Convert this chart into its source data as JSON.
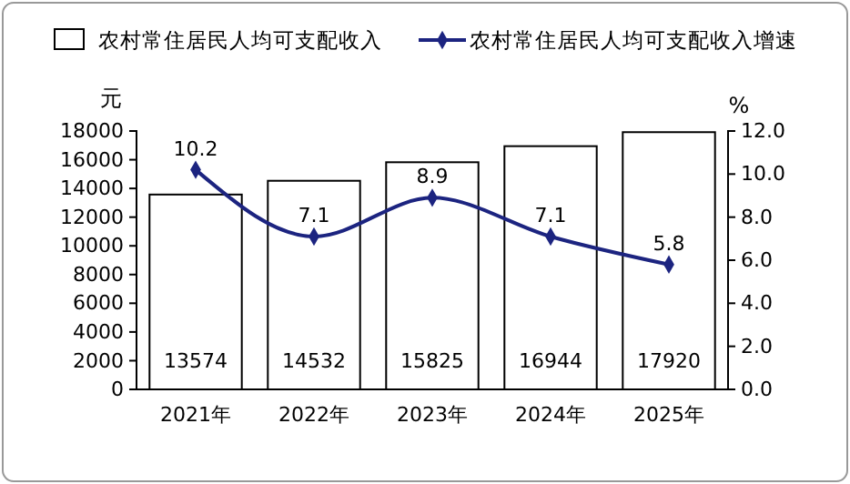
{
  "chart_data": {
    "type": "bar",
    "categories": [
      "2021年",
      "2022年",
      "2023年",
      "2024年",
      "2025年"
    ],
    "ylabel": "元",
    "y2label": "%",
    "ylim": [
      0,
      18000
    ],
    "yticks": [
      0,
      2000,
      4000,
      6000,
      8000,
      10000,
      12000,
      14000,
      16000,
      18000
    ],
    "y2lim": [
      0,
      12
    ],
    "y2ticks": [
      {
        "value": 0,
        "label": "0.0"
      },
      {
        "value": 2,
        "label": "2.0"
      },
      {
        "value": 4,
        "label": "4.0"
      },
      {
        "value": 6,
        "label": "6.0"
      },
      {
        "value": 8,
        "label": "8.0"
      },
      {
        "value": 10,
        "label": "10.0"
      },
      {
        "value": 12,
        "label": "12.0"
      }
    ],
    "series": [
      {
        "name": "农村常住居民人均可支配收入",
        "color": "#ffffff",
        "values": [
          13574,
          14532,
          15825,
          16944,
          17920
        ]
      },
      {
        "name": "农村常住居民人均可支配收入增速",
        "type": "line",
        "axis": "y2",
        "color": "#1c2480",
        "marker": "diamond",
        "values": [
          10.2,
          7.1,
          8.9,
          7.1,
          5.8
        ]
      }
    ],
    "data_labels": true,
    "legend": "top",
    "grid": false
  }
}
